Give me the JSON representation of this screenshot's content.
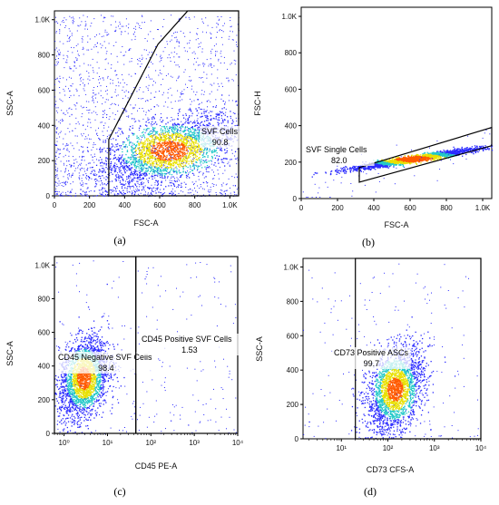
{
  "figure": {
    "panels": [
      {
        "id": "a",
        "label_text": "(a)",
        "sub": "a"
      },
      {
        "id": "b",
        "label_text": "(b)",
        "sub": "b"
      },
      {
        "id": "c",
        "label_text": "(c)",
        "sub": "c"
      },
      {
        "id": "d",
        "label_text": "(d)",
        "sub": "d"
      }
    ]
  },
  "chart_data": [
    {
      "type": "scatter",
      "panel": "a",
      "xlabel": "FSC-A",
      "ylabel": "SSC-A",
      "xlim": [
        0,
        1050
      ],
      "ylim": [
        0,
        1050
      ],
      "xscale": "linear",
      "yscale": "linear",
      "xticks": [
        "0",
        "200",
        "400",
        "600",
        "800",
        "1.0K"
      ],
      "yticks": [
        "0",
        "200",
        "400",
        "600",
        "800",
        "1.0K"
      ],
      "gate": {
        "name": "SVF Cells",
        "percent": "90.8",
        "polygon": [
          [
            310,
            0
          ],
          [
            310,
            320
          ],
          [
            590,
            860
          ],
          [
            760,
            1050
          ],
          [
            1050,
            1050
          ],
          [
            1050,
            0
          ]
        ]
      },
      "population": {
        "center": [
          650,
          260
        ],
        "spread": [
          190,
          100
        ],
        "corr": 0.55,
        "count": 2600,
        "background": 1800
      }
    },
    {
      "type": "scatter",
      "panel": "b",
      "xlabel": "FSC-A",
      "ylabel": "FSC-H",
      "xlim": [
        0,
        1050
      ],
      "ylim": [
        0,
        1050
      ],
      "xscale": "linear",
      "yscale": "linear",
      "xticks": [
        "0",
        "200",
        "400",
        "600",
        "800",
        "1.0K"
      ],
      "yticks": [
        "0",
        "200",
        "400",
        "600",
        "800",
        "1.0K"
      ],
      "gate": {
        "name": "SVF Single Cells",
        "percent": "82.0",
        "polygon": [
          [
            320,
            90
          ],
          [
            1050,
            290
          ],
          [
            1050,
            390
          ],
          [
            320,
            170
          ]
        ]
      },
      "population": {
        "center": [
          620,
          220
        ],
        "spread": [
          180,
          30
        ],
        "corr": 0.95,
        "count": 2200,
        "background": 60
      }
    },
    {
      "type": "scatter",
      "panel": "c",
      "xlabel": "CD45 PE-A",
      "ylabel": "SSC-A",
      "xlim": [
        0.6,
        10000
      ],
      "ylim": [
        0,
        1050
      ],
      "xscale": "log",
      "yscale": "linear",
      "xticks": [
        "10⁰",
        "10¹",
        "10²",
        "10³",
        "10⁴"
      ],
      "yticks": [
        "0",
        "200",
        "400",
        "600",
        "800",
        "1.0K"
      ],
      "gates": [
        {
          "name": "CD45 Negative SVF Cells",
          "percent": "98.4",
          "xrange": [
            0.6,
            45
          ],
          "yrange": [
            0,
            1050
          ]
        },
        {
          "name": "CD45 Positive SVF Cells",
          "percent": "1.53",
          "xrange": [
            45,
            10000
          ],
          "yrange": [
            0,
            1050
          ]
        }
      ],
      "population": {
        "center": [
          2.8,
          330
        ],
        "spread": [
          0.28,
          120
        ],
        "corr": 0.3,
        "count": 2400,
        "background": 260
      }
    },
    {
      "type": "scatter",
      "panel": "d",
      "xlabel": "CD73 CFS-A",
      "ylabel": "SSC-A",
      "xlim": [
        1.5,
        10000
      ],
      "ylim": [
        0,
        1050
      ],
      "xscale": "log",
      "yscale": "linear",
      "xticks": [
        "10¹",
        "10²",
        "10³",
        "10⁴"
      ],
      "yticks": [
        "0",
        "200",
        "400",
        "600",
        "800",
        "1.0K"
      ],
      "gate": {
        "name": "CD73 Positive ASCs",
        "percent": "99.7",
        "xrange": [
          20,
          10000
        ],
        "yrange": [
          0,
          1050
        ]
      },
      "population": {
        "center": [
          140,
          290
        ],
        "spread": [
          0.3,
          120
        ],
        "corr": 0.35,
        "count": 2400,
        "background": 200
      }
    }
  ],
  "colors": {
    "density_low": "#2a2aff",
    "density_mid": "#22c8c8",
    "density_high": "#e8e000",
    "density_peak": "#ff5a00",
    "frame": "#000000"
  }
}
